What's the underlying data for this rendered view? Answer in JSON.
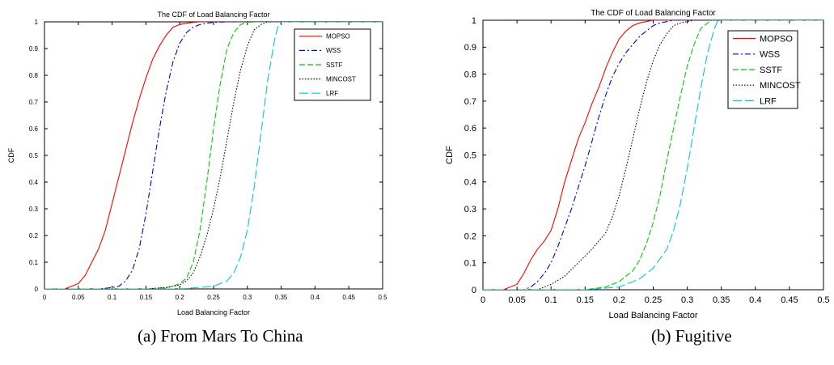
{
  "chart_data": [
    {
      "type": "line",
      "title": "The CDF of Load Balancing Factor",
      "xlabel": "Load Balancing Factor",
      "ylabel": "CDF",
      "xlim": [
        0,
        0.5
      ],
      "ylim": [
        0,
        1
      ],
      "xticks": [
        "0",
        "0.05",
        "0.1",
        "0.15",
        "0.2",
        "0.25",
        "0.3",
        "0.35",
        "0.4",
        "0.45",
        "0.5"
      ],
      "yticks": [
        "0",
        "0.1",
        "0.2",
        "0.3",
        "0.4",
        "0.5",
        "0.6",
        "0.7",
        "0.8",
        "0.9",
        "1"
      ],
      "grid": false,
      "legend_position": "top-right",
      "caption": "(a) From Mars To China",
      "series": [
        {
          "name": "MOPSO",
          "color": "#ff0000",
          "dash": "solid",
          "x": [
            0.0,
            0.03,
            0.04,
            0.05,
            0.06,
            0.07,
            0.08,
            0.09,
            0.1,
            0.11,
            0.12,
            0.13,
            0.14,
            0.15,
            0.16,
            0.17,
            0.18,
            0.19,
            0.2,
            0.21,
            0.22,
            0.23,
            0.25,
            0.5
          ],
          "y": [
            0.0,
            0.0,
            0.01,
            0.02,
            0.05,
            0.1,
            0.15,
            0.22,
            0.32,
            0.42,
            0.52,
            0.62,
            0.71,
            0.79,
            0.86,
            0.91,
            0.95,
            0.98,
            0.99,
            0.995,
            0.998,
            1.0,
            1.0,
            1.0
          ]
        },
        {
          "name": "WSS",
          "color": "#0000cc",
          "dash": "dashdot",
          "x": [
            0.0,
            0.08,
            0.1,
            0.11,
            0.12,
            0.13,
            0.14,
            0.15,
            0.16,
            0.17,
            0.18,
            0.19,
            0.2,
            0.21,
            0.22,
            0.23,
            0.24,
            0.25,
            0.27,
            0.5
          ],
          "y": [
            0.0,
            0.0,
            0.005,
            0.01,
            0.03,
            0.07,
            0.15,
            0.28,
            0.44,
            0.6,
            0.74,
            0.85,
            0.92,
            0.96,
            0.98,
            0.99,
            0.995,
            0.998,
            1.0,
            1.0
          ]
        },
        {
          "name": "SSTF",
          "color": "#00cc00",
          "dash": "dashed",
          "x": [
            0.0,
            0.15,
            0.18,
            0.19,
            0.2,
            0.21,
            0.22,
            0.23,
            0.24,
            0.25,
            0.26,
            0.27,
            0.28,
            0.29,
            0.3,
            0.31,
            0.5
          ],
          "y": [
            0.0,
            0.0,
            0.005,
            0.01,
            0.02,
            0.04,
            0.1,
            0.22,
            0.4,
            0.6,
            0.77,
            0.9,
            0.96,
            0.99,
            0.998,
            1.0,
            1.0
          ]
        },
        {
          "name": "MINCOST",
          "color": "#000000",
          "dash": "dotted",
          "x": [
            0.0,
            0.15,
            0.18,
            0.2,
            0.21,
            0.22,
            0.23,
            0.24,
            0.25,
            0.26,
            0.27,
            0.28,
            0.29,
            0.3,
            0.31,
            0.32,
            0.33,
            0.5
          ],
          "y": [
            0.0,
            0.0,
            0.005,
            0.015,
            0.03,
            0.06,
            0.12,
            0.2,
            0.3,
            0.42,
            0.56,
            0.7,
            0.82,
            0.91,
            0.97,
            0.99,
            1.0,
            1.0
          ]
        },
        {
          "name": "LRF",
          "color": "#00cccc",
          "dash": "longdash",
          "x": [
            0.0,
            0.2,
            0.25,
            0.27,
            0.28,
            0.29,
            0.3,
            0.31,
            0.32,
            0.33,
            0.34,
            0.345,
            0.35,
            0.5
          ],
          "y": [
            0.0,
            0.0,
            0.01,
            0.03,
            0.06,
            0.12,
            0.22,
            0.38,
            0.58,
            0.78,
            0.93,
            0.98,
            1.0,
            1.0
          ]
        }
      ]
    },
    {
      "type": "line",
      "title": "The CDF of Load Balancing Factor",
      "xlabel": "Load Balancing Factor",
      "ylabel": "CDF",
      "xlim": [
        0,
        0.5
      ],
      "ylim": [
        0,
        1
      ],
      "xticks": [
        "0",
        "0.05",
        "0.1",
        "0.15",
        "0.2",
        "0.25",
        "0.3",
        "0.35",
        "0.4",
        "0.45",
        "0.5"
      ],
      "yticks": [
        "0",
        "0.1",
        "0.2",
        "0.3",
        "0.4",
        "0.5",
        "0.6",
        "0.7",
        "0.8",
        "0.9",
        "1"
      ],
      "grid": false,
      "legend_position": "top-right",
      "caption": "(b) Fugitive",
      "series": [
        {
          "name": "MOPSO",
          "color": "#ff0000",
          "dash": "solid",
          "x": [
            0.0,
            0.03,
            0.05,
            0.06,
            0.07,
            0.08,
            0.09,
            0.1,
            0.11,
            0.12,
            0.13,
            0.14,
            0.15,
            0.16,
            0.17,
            0.18,
            0.19,
            0.2,
            0.21,
            0.22,
            0.23,
            0.24,
            0.25,
            0.26,
            0.5
          ],
          "y": [
            0.0,
            0.0,
            0.02,
            0.06,
            0.11,
            0.15,
            0.18,
            0.22,
            0.3,
            0.4,
            0.48,
            0.56,
            0.62,
            0.69,
            0.75,
            0.82,
            0.88,
            0.93,
            0.96,
            0.98,
            0.99,
            0.995,
            1.0,
            1.0,
            1.0
          ]
        },
        {
          "name": "WSS",
          "color": "#0000cc",
          "dash": "dashdot",
          "x": [
            0.0,
            0.06,
            0.07,
            0.08,
            0.09,
            0.1,
            0.11,
            0.12,
            0.13,
            0.14,
            0.15,
            0.16,
            0.17,
            0.18,
            0.19,
            0.2,
            0.21,
            0.22,
            0.23,
            0.24,
            0.25,
            0.26,
            0.27,
            0.28,
            0.3,
            0.5
          ],
          "y": [
            0.0,
            0.0,
            0.01,
            0.03,
            0.06,
            0.1,
            0.16,
            0.23,
            0.3,
            0.38,
            0.46,
            0.55,
            0.64,
            0.72,
            0.79,
            0.84,
            0.88,
            0.91,
            0.94,
            0.96,
            0.98,
            0.99,
            0.995,
            1.0,
            1.0,
            1.0
          ]
        },
        {
          "name": "SSTF",
          "color": "#00cc00",
          "dash": "dashed",
          "x": [
            0.0,
            0.15,
            0.18,
            0.2,
            0.22,
            0.23,
            0.24,
            0.25,
            0.26,
            0.27,
            0.28,
            0.29,
            0.3,
            0.31,
            0.32,
            0.33,
            0.335,
            0.5
          ],
          "y": [
            0.0,
            0.0,
            0.01,
            0.03,
            0.07,
            0.11,
            0.17,
            0.25,
            0.35,
            0.48,
            0.6,
            0.72,
            0.83,
            0.91,
            0.97,
            0.99,
            1.0,
            1.0
          ]
        },
        {
          "name": "MINCOST",
          "color": "#000000",
          "dash": "dotted",
          "x": [
            0.0,
            0.08,
            0.1,
            0.12,
            0.14,
            0.16,
            0.18,
            0.19,
            0.2,
            0.21,
            0.22,
            0.23,
            0.24,
            0.25,
            0.26,
            0.27,
            0.28,
            0.29,
            0.3,
            0.31,
            0.5
          ],
          "y": [
            0.0,
            0.0,
            0.02,
            0.05,
            0.1,
            0.15,
            0.21,
            0.27,
            0.35,
            0.45,
            0.56,
            0.67,
            0.77,
            0.85,
            0.91,
            0.95,
            0.98,
            0.99,
            0.995,
            1.0,
            1.0
          ]
        },
        {
          "name": "LRF",
          "color": "#00cccc",
          "dash": "longdash",
          "x": [
            0.0,
            0.15,
            0.2,
            0.23,
            0.25,
            0.27,
            0.28,
            0.29,
            0.3,
            0.31,
            0.32,
            0.33,
            0.34,
            0.345,
            0.5
          ],
          "y": [
            0.0,
            0.0,
            0.01,
            0.04,
            0.08,
            0.15,
            0.22,
            0.32,
            0.45,
            0.6,
            0.75,
            0.88,
            0.97,
            1.0,
            1.0
          ]
        }
      ]
    }
  ]
}
